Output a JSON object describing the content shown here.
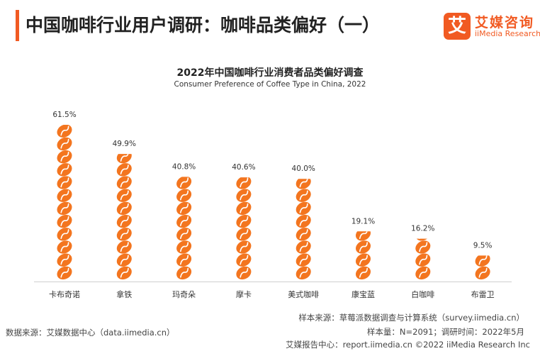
{
  "header": {
    "title": "中国咖啡行业用户调研：咖啡品类偏好（一）",
    "logo_cn": "艾媒咨询",
    "logo_en": "iiMedia Research",
    "logo_mark": "艾"
  },
  "chart_data": {
    "type": "bar",
    "title": "2022年中国咖啡行业消费者品类偏好调查",
    "subtitle": "Consumer Preference of Coffee Type in China, 2022",
    "categories": [
      "卡布奇诺",
      "拿铁",
      "玛奇朵",
      "摩卡",
      "美式咖啡",
      "康宝蓝",
      "白咖啡",
      "布雷卫"
    ],
    "values": [
      61.5,
      49.9,
      40.8,
      40.6,
      40.0,
      19.1,
      16.2,
      9.5
    ],
    "value_labels": [
      "61.5%",
      "49.9%",
      "40.8%",
      "40.6%",
      "40.0%",
      "19.1%",
      "16.2%",
      "9.5%"
    ],
    "unit": "%",
    "ylim": [
      0,
      61.5
    ],
    "grid": false,
    "bar_style": "stacked coffee beans",
    "bar_color": "#f3751f"
  },
  "footer": {
    "sample_source": "样本来源：草莓派数据调查与计算系统（survey.iimedia.cn）",
    "sample_size": "样本量：N=2091；调研时间：2022年5月",
    "data_source": "数据来源：艾媒数据中心（data.iimedia.cn）",
    "copyright": "艾媒报告中心：report.iimedia.cn   ©2022  iiMedia Research  Inc"
  }
}
